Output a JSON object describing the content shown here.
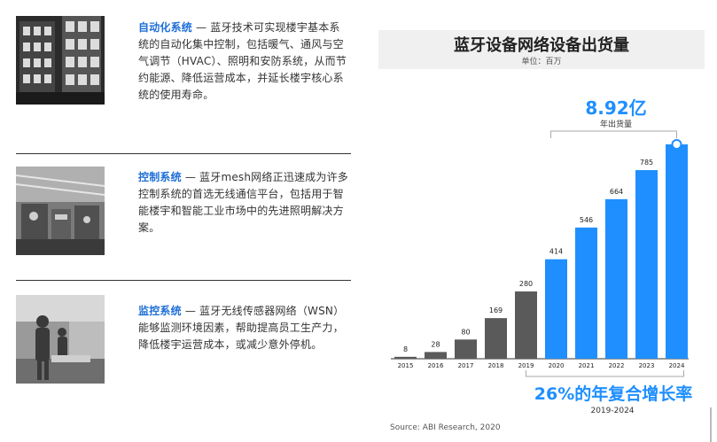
{
  "sections": [
    {
      "keyword": "自动化系统",
      "text": " — 蓝牙技术可实现楼宇基本系统的自动化集中控制，包括暖气、通风与空气调节（HVAC）、照明和安防系统，从而节约能源、降低运营成本，并延长楼宇核心系统的使用寿命。"
    },
    {
      "keyword": "控制系统",
      "text": " — 蓝牙mesh网络正迅速成为许多控制系统的首选无线通信平台，包括用于智能楼宇和智能工业市场中的先进照明解决方案。"
    },
    {
      "keyword": "监控系统",
      "text": " — 蓝牙无线传感器网络（WSN）能够监测环境因素，帮助提高员工生产力，降低楼宇运营成本，或减少意外停机。"
    }
  ],
  "chart_data": {
    "type": "bar",
    "title": "蓝牙设备网络设备出货量",
    "subtitle": "单位：百万",
    "categories": [
      "2015",
      "2016",
      "2017",
      "2018",
      "2019",
      "2020",
      "2021",
      "2022",
      "2023",
      "2024"
    ],
    "values": [
      8,
      28,
      80,
      169,
      280,
      414,
      546,
      664,
      785,
      892
    ],
    "value_labels": [
      "8",
      "28",
      "80",
      "169",
      "280",
      "414",
      "546",
      "664",
      "785",
      ""
    ],
    "colors": {
      "historical": "#5a5a5a",
      "forecast": "#1f8fff"
    },
    "forecast_from": "2020",
    "highlight": {
      "value": "8.92亿",
      "label": "年出货量"
    },
    "cagr": {
      "text": "26%的年复合增长率",
      "period": "2019-2024"
    },
    "source": "Source: ABI Research, 2020",
    "ylim": [
      0,
      892
    ]
  }
}
